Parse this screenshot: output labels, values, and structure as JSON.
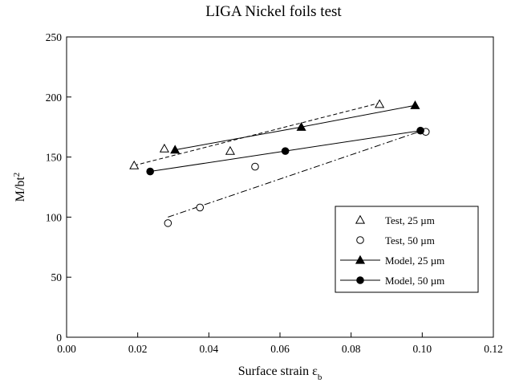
{
  "chart_data": {
    "type": "scatter",
    "title": "LIGA Nickel foils test",
    "xlabel": "Surface strain ε",
    "xlabel_subscript": "b",
    "ylabel": "M/bt",
    "ylabel_superscript": "2",
    "xlim": [
      0.0,
      0.12
    ],
    "ylim": [
      0,
      250
    ],
    "xticks": [
      "0.00",
      "0.02",
      "0.04",
      "0.06",
      "0.08",
      "0.10",
      "0.12"
    ],
    "yticks": [
      "0",
      "50",
      "100",
      "150",
      "200",
      "250"
    ],
    "grid": false,
    "legend_position": "right",
    "series": [
      {
        "name": "Test,   25 µm",
        "marker": "open-triangle",
        "line": "none",
        "points": [
          [
            0.019,
            143
          ],
          [
            0.0275,
            157
          ],
          [
            0.046,
            155
          ],
          [
            0.088,
            194
          ]
        ]
      },
      {
        "name": "Test,   50 µm",
        "marker": "open-circle",
        "line": "none",
        "points": [
          [
            0.0285,
            95
          ],
          [
            0.0375,
            108
          ],
          [
            0.053,
            142
          ],
          [
            0.101,
            171
          ]
        ]
      },
      {
        "name": "Model, 25 µm",
        "marker": "filled-triangle",
        "line": "solid",
        "points": [
          [
            0.0305,
            156
          ],
          [
            0.066,
            175
          ],
          [
            0.098,
            193
          ]
        ]
      },
      {
        "name": "Model, 50 µm",
        "marker": "filled-circle",
        "line": "solid",
        "points": [
          [
            0.0235,
            138
          ],
          [
            0.0615,
            155
          ],
          [
            0.0995,
            172
          ]
        ]
      }
    ],
    "fit_lines": [
      {
        "style": "dashed",
        "points": [
          [
            0.019,
            143
          ],
          [
            0.088,
            195
          ]
        ]
      },
      {
        "style": "dash-dot",
        "points": [
          [
            0.0285,
            100
          ],
          [
            0.101,
            173
          ]
        ]
      }
    ]
  }
}
